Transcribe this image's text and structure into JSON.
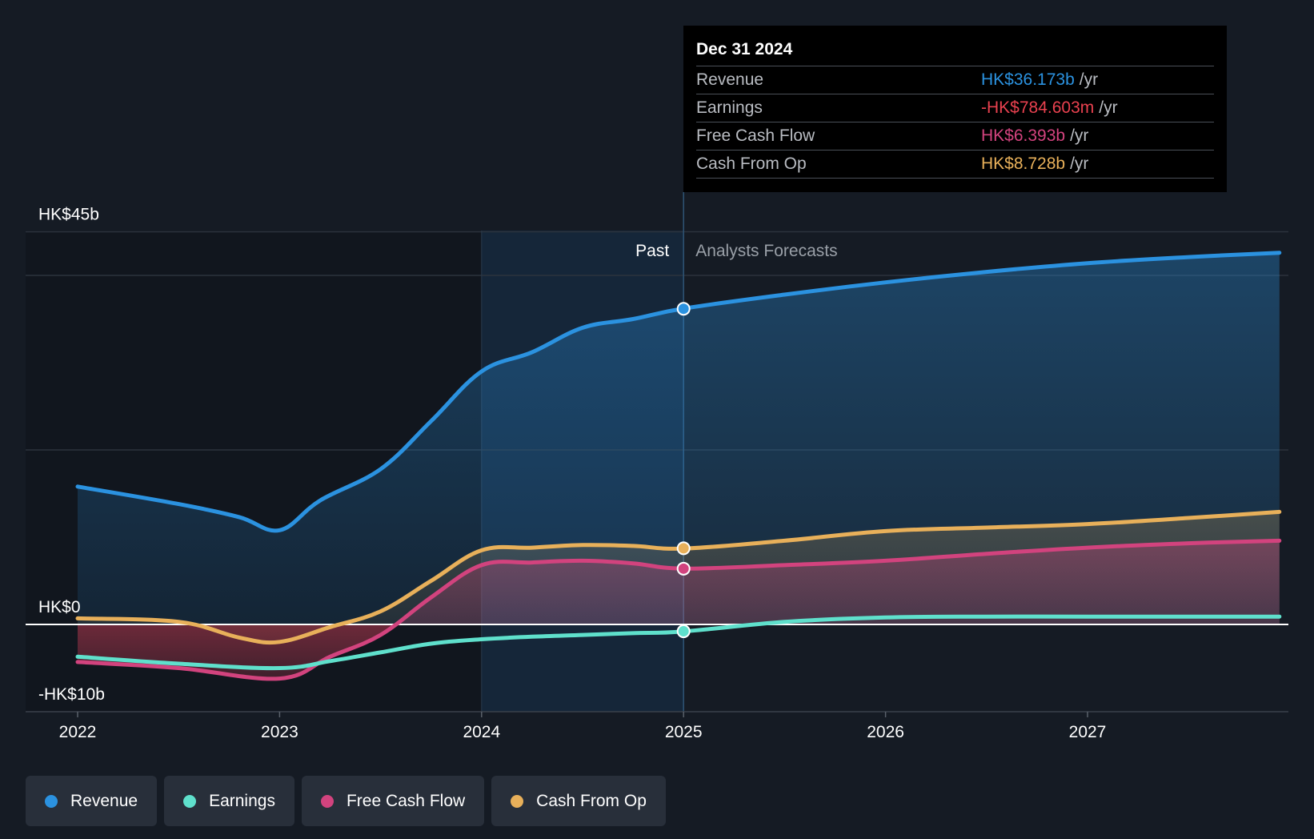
{
  "colors": {
    "background": "#151b24",
    "revenue": "#2b92e0",
    "earnings": "#5fe0cc",
    "fcf": "#d2437e",
    "cfo": "#e8b05a",
    "negative": "#e8414f"
  },
  "tooltip": {
    "date": "Dec 31 2024",
    "rows": [
      {
        "label": "Revenue",
        "value": "HK$36.173b",
        "unit": "/yr"
      },
      {
        "label": "Earnings",
        "value": "-HK$784.603m",
        "unit": "/yr"
      },
      {
        "label": "Free Cash Flow",
        "value": "HK$6.393b",
        "unit": "/yr"
      },
      {
        "label": "Cash From Op",
        "value": "HK$8.728b",
        "unit": "/yr"
      }
    ]
  },
  "legend": [
    {
      "label": "Revenue",
      "color": "#2b92e0"
    },
    {
      "label": "Earnings",
      "color": "#5fe0cc"
    },
    {
      "label": "Free Cash Flow",
      "color": "#d2437e"
    },
    {
      "label": "Cash From Op",
      "color": "#e8b05a"
    }
  ],
  "chart_data": {
    "type": "line",
    "title": "",
    "y_labels": [
      {
        "label": "HK$45b",
        "value": 45
      },
      {
        "label": "HK$0",
        "value": 0
      },
      {
        "label": "-HK$10b",
        "value": -10
      }
    ],
    "ylim": [
      -10,
      45
    ],
    "xlim": [
      2021.75,
      2027.95
    ],
    "x_ticks": [
      2022,
      2023,
      2024,
      2025,
      2026,
      2027
    ],
    "x_tick_labels": [
      "2022",
      "2023",
      "2024",
      "2025",
      "2026",
      "2027"
    ],
    "past_label": "Past",
    "forecast_label": "Analysts Forecasts",
    "past_end": 2025,
    "highlight_start": 2024,
    "series": [
      {
        "name": "Revenue",
        "x": [
          2022,
          2022.5,
          2022.8,
          2023,
          2023.2,
          2023.5,
          2023.75,
          2024,
          2024.25,
          2024.5,
          2024.75,
          2025,
          2025.5,
          2026,
          2026.5,
          2027,
          2027.5,
          2027.95
        ],
        "values": [
          15.8,
          13.8,
          12.3,
          10.8,
          14.2,
          17.8,
          23.3,
          29.0,
          31.2,
          34.0,
          35.0,
          36.2,
          37.8,
          39.2,
          40.4,
          41.4,
          42.1,
          42.6
        ]
      },
      {
        "name": "Earnings",
        "x": [
          2022,
          2022.5,
          2023,
          2023.25,
          2023.5,
          2023.75,
          2024,
          2024.25,
          2024.5,
          2024.75,
          2025,
          2025.5,
          2026,
          2026.5,
          2027,
          2027.5,
          2027.95
        ],
        "values": [
          -3.7,
          -4.5,
          -5.0,
          -4.2,
          -3.2,
          -2.2,
          -1.7,
          -1.4,
          -1.2,
          -1.0,
          -0.8,
          0.3,
          0.8,
          0.9,
          0.9,
          0.9,
          0.9
        ]
      },
      {
        "name": "Free Cash Flow",
        "x": [
          2022,
          2022.5,
          2023,
          2023.25,
          2023.5,
          2023.75,
          2024,
          2024.25,
          2024.5,
          2024.75,
          2025,
          2025.5,
          2026,
          2026.5,
          2027,
          2027.5,
          2027.95
        ],
        "values": [
          -4.3,
          -5.0,
          -6.2,
          -3.7,
          -1.2,
          3.1,
          6.8,
          7.1,
          7.3,
          7.0,
          6.4,
          6.8,
          7.3,
          8.1,
          8.8,
          9.3,
          9.6
        ]
      },
      {
        "name": "Cash From Op",
        "x": [
          2022,
          2022.5,
          2022.8,
          2023,
          2023.25,
          2023.5,
          2023.75,
          2024,
          2024.25,
          2024.5,
          2024.75,
          2025,
          2025.5,
          2026,
          2026.5,
          2027,
          2027.5,
          2027.95
        ],
        "values": [
          0.7,
          0.3,
          -1.5,
          -2.0,
          -0.3,
          1.5,
          5.0,
          8.5,
          8.8,
          9.1,
          9.0,
          8.7,
          9.6,
          10.7,
          11.1,
          11.5,
          12.2,
          12.9
        ]
      }
    ],
    "markers": [
      {
        "series": "Revenue",
        "x": 2025,
        "value": 36.173
      },
      {
        "series": "Earnings",
        "x": 2025,
        "value": -0.785
      },
      {
        "series": "Free Cash Flow",
        "x": 2025,
        "value": 6.393
      },
      {
        "series": "Cash From Op",
        "x": 2025,
        "value": 8.728
      }
    ]
  }
}
